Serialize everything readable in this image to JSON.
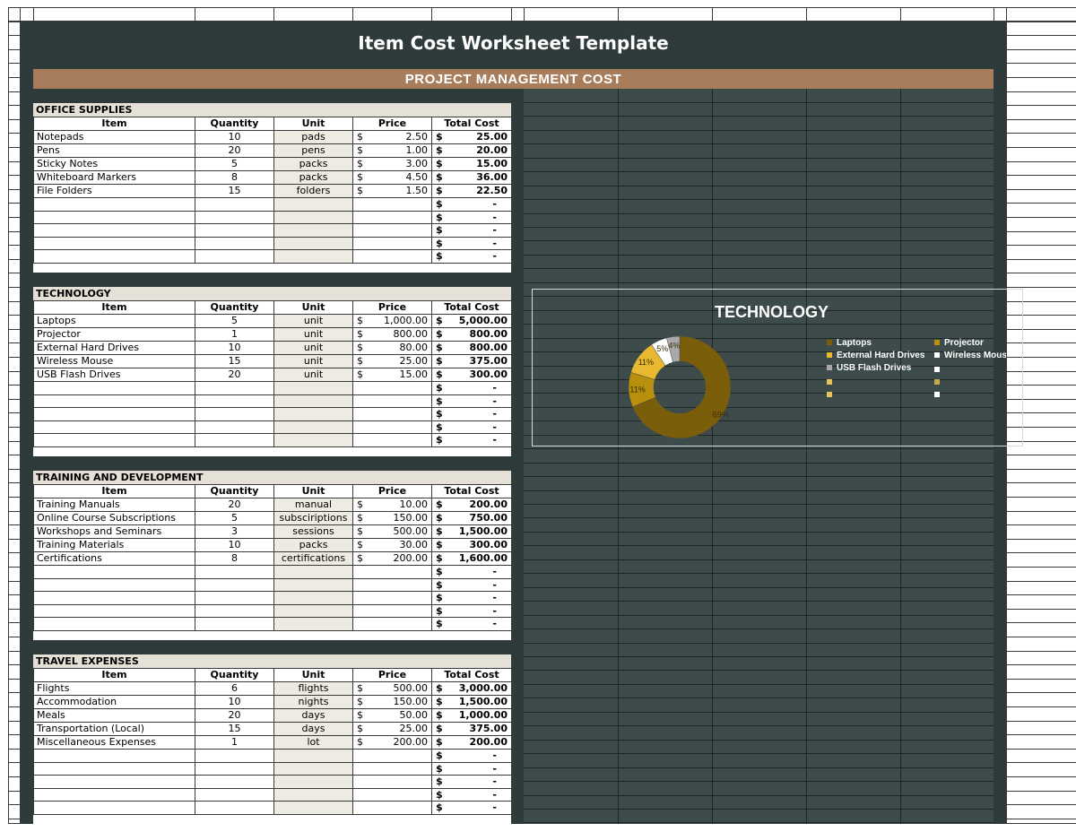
{
  "title": "Item Cost Worksheet Template",
  "subtitle": "PROJECT MANAGEMENT COST",
  "headers": {
    "item": "Item",
    "quantity": "Quantity",
    "unit": "Unit",
    "price": "Price",
    "total": "Total Cost"
  },
  "currency": "$",
  "empty_total": "-",
  "colors": {
    "banner": "#2f3b3a",
    "accent": "#a87d5c",
    "panel": "#3d4b4a",
    "unit_fill": "#eeebe3",
    "section_fill": "#e6e1d6"
  },
  "sections": [
    {
      "name": "OFFICE SUPPLIES",
      "rows": [
        {
          "item": "Notepads",
          "qty": "10",
          "unit": "pads",
          "price": "2.50",
          "total": "25.00"
        },
        {
          "item": "Pens",
          "qty": "20",
          "unit": "pens",
          "price": "1.00",
          "total": "20.00"
        },
        {
          "item": "Sticky Notes",
          "qty": "5",
          "unit": "packs",
          "price": "3.00",
          "total": "15.00"
        },
        {
          "item": "Whiteboard Markers",
          "qty": "8",
          "unit": "packs",
          "price": "4.50",
          "total": "36.00"
        },
        {
          "item": "File Folders",
          "qty": "15",
          "unit": "folders",
          "price": "1.50",
          "total": "22.50"
        }
      ]
    },
    {
      "name": "TECHNOLOGY",
      "rows": [
        {
          "item": "Laptops",
          "qty": "5",
          "unit": "unit",
          "price": "1,000.00",
          "total": "5,000.00"
        },
        {
          "item": "Projector",
          "qty": "1",
          "unit": "unit",
          "price": "800.00",
          "total": "800.00"
        },
        {
          "item": "External Hard Drives",
          "qty": "10",
          "unit": "unit",
          "price": "80.00",
          "total": "800.00"
        },
        {
          "item": "Wireless Mouse",
          "qty": "15",
          "unit": "unit",
          "price": "25.00",
          "total": "375.00"
        },
        {
          "item": "USB Flash Drives",
          "qty": "20",
          "unit": "unit",
          "price": "15.00",
          "total": "300.00"
        }
      ]
    },
    {
      "name": "TRAINING AND DEVELOPMENT",
      "rows": [
        {
          "item": "Training Manuals",
          "qty": "20",
          "unit": "manual",
          "price": "10.00",
          "total": "200.00"
        },
        {
          "item": "Online Course Subscriptions",
          "qty": "5",
          "unit": "subsciriptions",
          "price": "150.00",
          "total": "750.00"
        },
        {
          "item": "Workshops and Seminars",
          "qty": "3",
          "unit": "sessions",
          "price": "500.00",
          "total": "1,500.00"
        },
        {
          "item": "Training Materials",
          "qty": "10",
          "unit": "packs",
          "price": "30.00",
          "total": "300.00"
        },
        {
          "item": "Certifications",
          "qty": "8",
          "unit": "certifications",
          "price": "200.00",
          "total": "1,600.00"
        }
      ]
    },
    {
      "name": "TRAVEL EXPENSES",
      "rows": [
        {
          "item": "Flights",
          "qty": "6",
          "unit": "flights",
          "price": "500.00",
          "total": "3,000.00"
        },
        {
          "item": "Accommodation",
          "qty": "10",
          "unit": "nights",
          "price": "150.00",
          "total": "1,500.00"
        },
        {
          "item": "Meals",
          "qty": "20",
          "unit": "days",
          "price": "50.00",
          "total": "1,000.00"
        },
        {
          "item": "Transportation (Local)",
          "qty": "15",
          "unit": "days",
          "price": "25.00",
          "total": "375.00"
        },
        {
          "item": "Miscellaneous Expenses",
          "qty": "1",
          "unit": "lot",
          "price": "200.00",
          "total": "200.00"
        }
      ]
    }
  ],
  "chart_data": {
    "type": "pie",
    "variant": "donut",
    "title": "TECHNOLOGY",
    "categories": [
      "Laptops",
      "Projector",
      "External Hard Drives",
      "Wireless Mouse",
      "USB Flash Drives"
    ],
    "values": [
      5000,
      800,
      800,
      375,
      300
    ],
    "percent_labels": [
      "69%",
      "11%",
      "11%",
      "5%",
      "4%"
    ],
    "colors": [
      "#7a5e0a",
      "#b8900c",
      "#e8b830",
      "#ffffff",
      "#a9a9a9"
    ],
    "legend_position": "right"
  }
}
